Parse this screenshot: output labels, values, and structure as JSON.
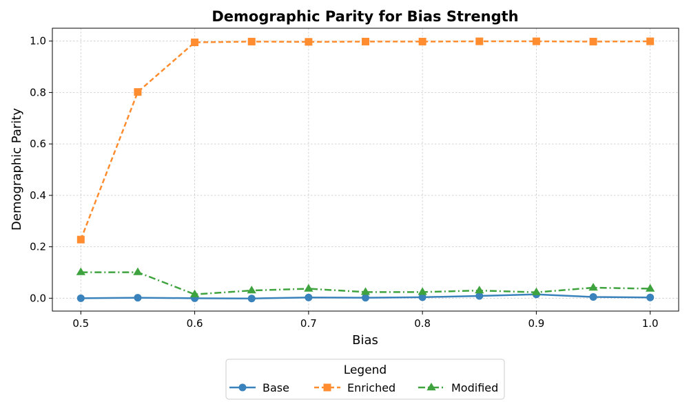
{
  "chart_data": {
    "type": "line",
    "title": "Demographic Parity for Bias Strength",
    "xlabel": "Bias",
    "ylabel": "Demographic Parity",
    "xlim": [
      0.475,
      1.025
    ],
    "ylim": [
      -0.05,
      1.05
    ],
    "x_ticks": [
      0.5,
      0.6,
      0.7,
      0.8,
      0.9,
      1.0
    ],
    "x_tick_labels": [
      "0.5",
      "0.6",
      "0.7",
      "0.8",
      "0.9",
      "1.0"
    ],
    "y_ticks": [
      0.0,
      0.2,
      0.4,
      0.6,
      0.8,
      1.0
    ],
    "y_tick_labels": [
      "0.0",
      "0.2",
      "0.4",
      "0.6",
      "0.8",
      "1.0"
    ],
    "grid": true,
    "legend": {
      "title": "Legend",
      "placement": "bottom-center"
    },
    "x": [
      0.5,
      0.55,
      0.6,
      0.65,
      0.7,
      0.75,
      0.8,
      0.85,
      0.9,
      0.95,
      1.0
    ],
    "series": [
      {
        "name": "Base",
        "color": "#3a82bb",
        "marker": "circle",
        "linestyle": "solid",
        "values": [
          0.0,
          0.002,
          0.0,
          -0.001,
          0.003,
          0.002,
          0.004,
          0.009,
          0.015,
          0.005,
          0.003
        ]
      },
      {
        "name": "Enriched",
        "color": "#ff8c2e",
        "marker": "square",
        "linestyle": "dashed",
        "values": [
          0.228,
          0.802,
          0.995,
          0.998,
          0.997,
          0.998,
          0.998,
          0.999,
          0.999,
          0.998,
          0.999
        ]
      },
      {
        "name": "Modified",
        "color": "#3ea33e",
        "marker": "triangle",
        "linestyle": "dashdot",
        "values": [
          0.101,
          0.101,
          0.015,
          0.03,
          0.037,
          0.024,
          0.024,
          0.03,
          0.023,
          0.041,
          0.037
        ]
      }
    ]
  }
}
